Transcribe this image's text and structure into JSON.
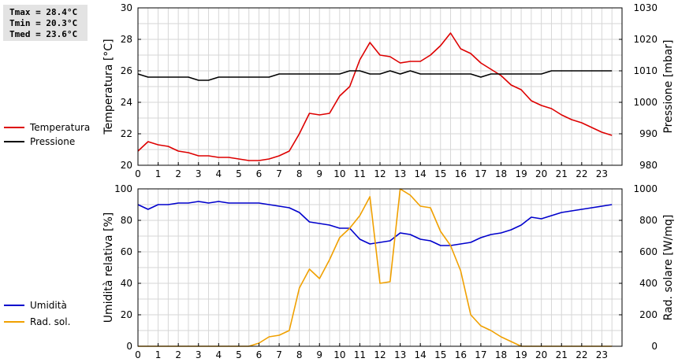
{
  "stats": {
    "tmax": "Tmax = 28.4°C",
    "tmin": "Tmin = 20.3°C",
    "tmed": "Tmed = 23.6°C"
  },
  "chart_data": [
    {
      "type": "line",
      "xlim": [
        0,
        24
      ],
      "x_ticks": [
        "0",
        "1",
        "2",
        "3",
        "4",
        "5",
        "6",
        "7",
        "8",
        "9",
        "10",
        "11",
        "12",
        "13",
        "14",
        "15",
        "16",
        "17",
        "18",
        "19",
        "20",
        "21",
        "22",
        "23"
      ],
      "ylabel": "Temperatura [°C]",
      "ylim": [
        20,
        30
      ],
      "y_ticks": [
        "20",
        "22",
        "24",
        "26",
        "28",
        "30"
      ],
      "y2label": "Pressione [mbar]",
      "y2lim": [
        980,
        1030
      ],
      "y2_ticks": [
        "980",
        "990",
        "1000",
        "1010",
        "1020",
        "1030"
      ],
      "grid": true,
      "legend_placement": "left",
      "series": [
        {
          "name": "Temperatura",
          "axis": "left",
          "color": "#dd0000",
          "x": [
            0,
            0.5,
            1,
            1.5,
            2,
            2.5,
            3,
            3.5,
            4,
            4.5,
            5,
            5.5,
            6,
            6.5,
            7,
            7.5,
            8,
            8.5,
            9,
            9.5,
            10,
            10.5,
            11,
            11.5,
            12,
            12.5,
            13,
            13.5,
            14,
            14.5,
            15,
            15.5,
            16,
            16.5,
            17,
            17.5,
            18,
            18.5,
            19,
            19.5,
            20,
            20.5,
            21,
            21.5,
            22,
            22.5,
            23,
            23.5
          ],
          "values": [
            20.9,
            21.5,
            21.3,
            21.2,
            20.9,
            20.8,
            20.6,
            20.6,
            20.5,
            20.5,
            20.4,
            20.3,
            20.3,
            20.4,
            20.6,
            20.9,
            22.0,
            23.3,
            23.2,
            23.3,
            24.4,
            25.0,
            26.7,
            27.8,
            27.0,
            26.9,
            26.5,
            26.6,
            26.6,
            27.0,
            27.6,
            28.4,
            27.4,
            27.1,
            26.5,
            26.1,
            25.7,
            25.1,
            24.8,
            24.1,
            23.8,
            23.6,
            23.2,
            22.9,
            22.7,
            22.4,
            22.1,
            21.9
          ]
        },
        {
          "name": "Pressione",
          "axis": "right",
          "color": "#000000",
          "x": [
            0,
            0.5,
            1,
            1.5,
            2,
            2.5,
            3,
            3.5,
            4,
            4.5,
            5,
            5.5,
            6,
            6.5,
            7,
            7.5,
            8,
            8.5,
            9,
            9.5,
            10,
            10.5,
            11,
            11.5,
            12,
            12.5,
            13,
            13.5,
            14,
            14.5,
            15,
            15.5,
            16,
            16.5,
            17,
            17.5,
            18,
            18.5,
            19,
            19.5,
            20,
            20.5,
            21,
            21.5,
            22,
            22.5,
            23,
            23.5
          ],
          "values": [
            1009,
            1008,
            1008,
            1008,
            1008,
            1008,
            1007,
            1007,
            1008,
            1008,
            1008,
            1008,
            1008,
            1008,
            1009,
            1009,
            1009,
            1009,
            1009,
            1009,
            1009,
            1010,
            1010,
            1009,
            1009,
            1010,
            1009,
            1010,
            1009,
            1009,
            1009,
            1009,
            1009,
            1009,
            1008,
            1009,
            1009,
            1009,
            1009,
            1009,
            1009,
            1010,
            1010,
            1010,
            1010,
            1010,
            1010,
            1010
          ]
        }
      ]
    },
    {
      "type": "line",
      "xlim": [
        0,
        24
      ],
      "x_ticks": [
        "0",
        "1",
        "2",
        "3",
        "4",
        "5",
        "6",
        "7",
        "8",
        "9",
        "10",
        "11",
        "12",
        "13",
        "14",
        "15",
        "16",
        "17",
        "18",
        "19",
        "20",
        "21",
        "22",
        "23"
      ],
      "ylabel": "Umidità relativa [%]",
      "ylim": [
        0,
        100
      ],
      "y_ticks": [
        "0",
        "20",
        "40",
        "60",
        "80",
        "100"
      ],
      "y2label": "Rad. solare [W/mq]",
      "y2lim": [
        0,
        1000
      ],
      "y2_ticks": [
        "0",
        "200",
        "400",
        "600",
        "800",
        "1000"
      ],
      "grid": true,
      "legend_placement": "left",
      "series": [
        {
          "name": "Umidità",
          "axis": "left",
          "color": "#0000cc",
          "x": [
            0,
            0.5,
            1,
            1.5,
            2,
            2.5,
            3,
            3.5,
            4,
            4.5,
            5,
            5.5,
            6,
            6.5,
            7,
            7.5,
            8,
            8.5,
            9,
            9.5,
            10,
            10.5,
            11,
            11.5,
            12,
            12.5,
            13,
            13.5,
            14,
            14.5,
            15,
            15.5,
            16,
            16.5,
            17,
            17.5,
            18,
            18.5,
            19,
            19.5,
            20,
            20.5,
            21,
            21.5,
            22,
            22.5,
            23,
            23.5
          ],
          "values": [
            90,
            87,
            90,
            90,
            91,
            91,
            92,
            91,
            92,
            91,
            91,
            91,
            91,
            90,
            89,
            88,
            85,
            79,
            78,
            77,
            75,
            75,
            68,
            65,
            66,
            67,
            72,
            71,
            68,
            67,
            64,
            64,
            65,
            66,
            69,
            71,
            72,
            74,
            77,
            82,
            81,
            83,
            85,
            86,
            87,
            88,
            89,
            90
          ]
        },
        {
          "name": "Rad. sol.",
          "axis": "right",
          "color": "#f0a000",
          "x": [
            0,
            0.5,
            1,
            1.5,
            2,
            2.5,
            3,
            3.5,
            4,
            4.5,
            5,
            5.5,
            6,
            6.5,
            7,
            7.5,
            8,
            8.5,
            9,
            9.5,
            10,
            10.5,
            11,
            11.5,
            12,
            12.5,
            13,
            13.5,
            14,
            14.5,
            15,
            15.5,
            16,
            16.5,
            17,
            17.5,
            18,
            18.5,
            19,
            19.5,
            20,
            20.5,
            21,
            21.5,
            22,
            22.5,
            23,
            23.5
          ],
          "values": [
            0,
            0,
            0,
            0,
            0,
            0,
            0,
            0,
            0,
            0,
            0,
            0,
            20,
            60,
            70,
            100,
            370,
            490,
            430,
            550,
            690,
            750,
            830,
            950,
            400,
            410,
            1010,
            960,
            890,
            880,
            730,
            640,
            480,
            200,
            130,
            100,
            60,
            30,
            0,
            0,
            0,
            0,
            0,
            0,
            0,
            0,
            0,
            0
          ]
        }
      ]
    }
  ]
}
